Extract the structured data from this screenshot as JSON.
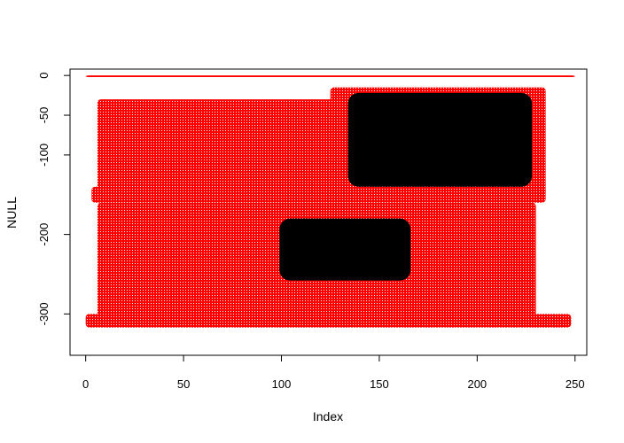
{
  "chart_data": {
    "type": "scatter",
    "title": "",
    "xlabel": "Index",
    "ylabel": "NULL",
    "xlim": [
      -8,
      256
    ],
    "ylim": [
      -352,
      8
    ],
    "x_ticks": [
      {
        "value": 0,
        "label": "0"
      },
      {
        "value": 50,
        "label": "50"
      },
      {
        "value": 100,
        "label": "100"
      },
      {
        "value": 150,
        "label": "150"
      },
      {
        "value": 200,
        "label": "200"
      },
      {
        "value": 250,
        "label": "250"
      }
    ],
    "y_ticks": [
      {
        "value": 0,
        "label": "0"
      },
      {
        "value": -50,
        "label": "-50"
      },
      {
        "value": -100,
        "label": "-100"
      },
      {
        "value": -200,
        "label": "-200"
      },
      {
        "value": -300,
        "label": "-300"
      }
    ],
    "grid": false,
    "legend": "none",
    "series": [
      {
        "color": "#ff0000",
        "regions": [
          {
            "x": [
              0,
              250
            ],
            "y": [
              -2,
              0
            ]
          },
          {
            "x": [
              6,
              130
            ],
            "y": [
              -145,
              -30
            ]
          },
          {
            "x": [
              3,
              235
            ],
            "y": [
              -160,
              -140
            ]
          },
          {
            "x": [
              6,
              230
            ],
            "y": [
              -310,
              -160
            ]
          },
          {
            "x": [
              0,
              248
            ],
            "y": [
              -317,
              -300
            ]
          },
          {
            "x": [
              125,
              235
            ],
            "y": [
              -150,
              -15
            ]
          }
        ]
      },
      {
        "color": "#000000",
        "regions": [
          {
            "x": [
              134,
              228
            ],
            "y": [
              -140,
              -22
            ]
          },
          {
            "x": [
              99,
              166
            ],
            "y": [
              -258,
              -180
            ]
          }
        ]
      }
    ]
  }
}
